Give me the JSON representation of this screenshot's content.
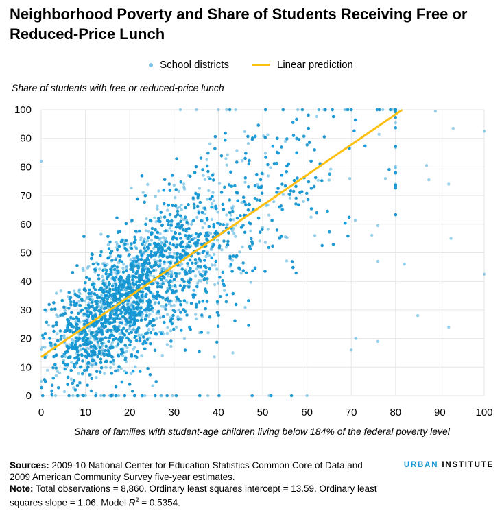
{
  "chart_data": {
    "type": "scatter",
    "title": "Neighborhood Poverty and Share of Students Receiving Free or Reduced-Price Lunch",
    "xlabel": "Share of families with student-age children living below 184% of the federal poverty level",
    "ylabel": "Share of students with free or reduced-price lunch",
    "xlim": [
      0,
      100
    ],
    "ylim": [
      0,
      100
    ],
    "xticks": [
      "0",
      "10",
      "20",
      "30",
      "40",
      "50",
      "60",
      "70",
      "80",
      "90",
      "100"
    ],
    "yticks": [
      "0",
      "10",
      "20",
      "30",
      "40",
      "50",
      "60",
      "70",
      "80",
      "90",
      "100"
    ],
    "grid": true,
    "legend": {
      "placement": "top-center",
      "entries": [
        "School districts",
        "Linear prediction"
      ]
    },
    "series": [
      {
        "name": "School districts",
        "kind": "points",
        "n": 8860,
        "color": "#1696d2",
        "note_points_approximated": "cloud generated around the fitted line",
        "notable_points": [
          [
            0,
            82
          ],
          [
            100,
            92.5
          ],
          [
            100,
            42.5
          ],
          [
            93,
            93.5
          ],
          [
            92,
            74
          ],
          [
            92,
            24
          ],
          [
            89,
            99.5
          ],
          [
            87,
            80.5
          ],
          [
            87.5,
            75.5
          ],
          [
            85,
            28
          ],
          [
            82,
            46
          ],
          [
            92.5,
            55
          ],
          [
            76,
            59.5
          ],
          [
            76,
            47
          ],
          [
            76,
            19
          ],
          [
            70,
            16
          ],
          [
            71,
            20
          ]
        ]
      },
      {
        "name": "Linear prediction",
        "kind": "line",
        "intercept": 13.59,
        "slope": 1.06,
        "color": "#fdbf11"
      }
    ]
  },
  "footer": {
    "sources_label": "Sources:",
    "sources_text": " 2009-10 National Center for Education Statistics Common Core of Data and 2009 American Community Survey five-year estimates.",
    "note_label": "Note:",
    "note_text": "  Total observations = 8,860. Ordinary least squares intercept = 13.59. Ordinary least squares slope = 1.06. Model ",
    "r2_label": "R",
    "r2_sup": "2",
    "r2_value": " = 0.5354."
  },
  "logo": {
    "part1": "URBAN",
    "part2": " INSTITUTE"
  }
}
